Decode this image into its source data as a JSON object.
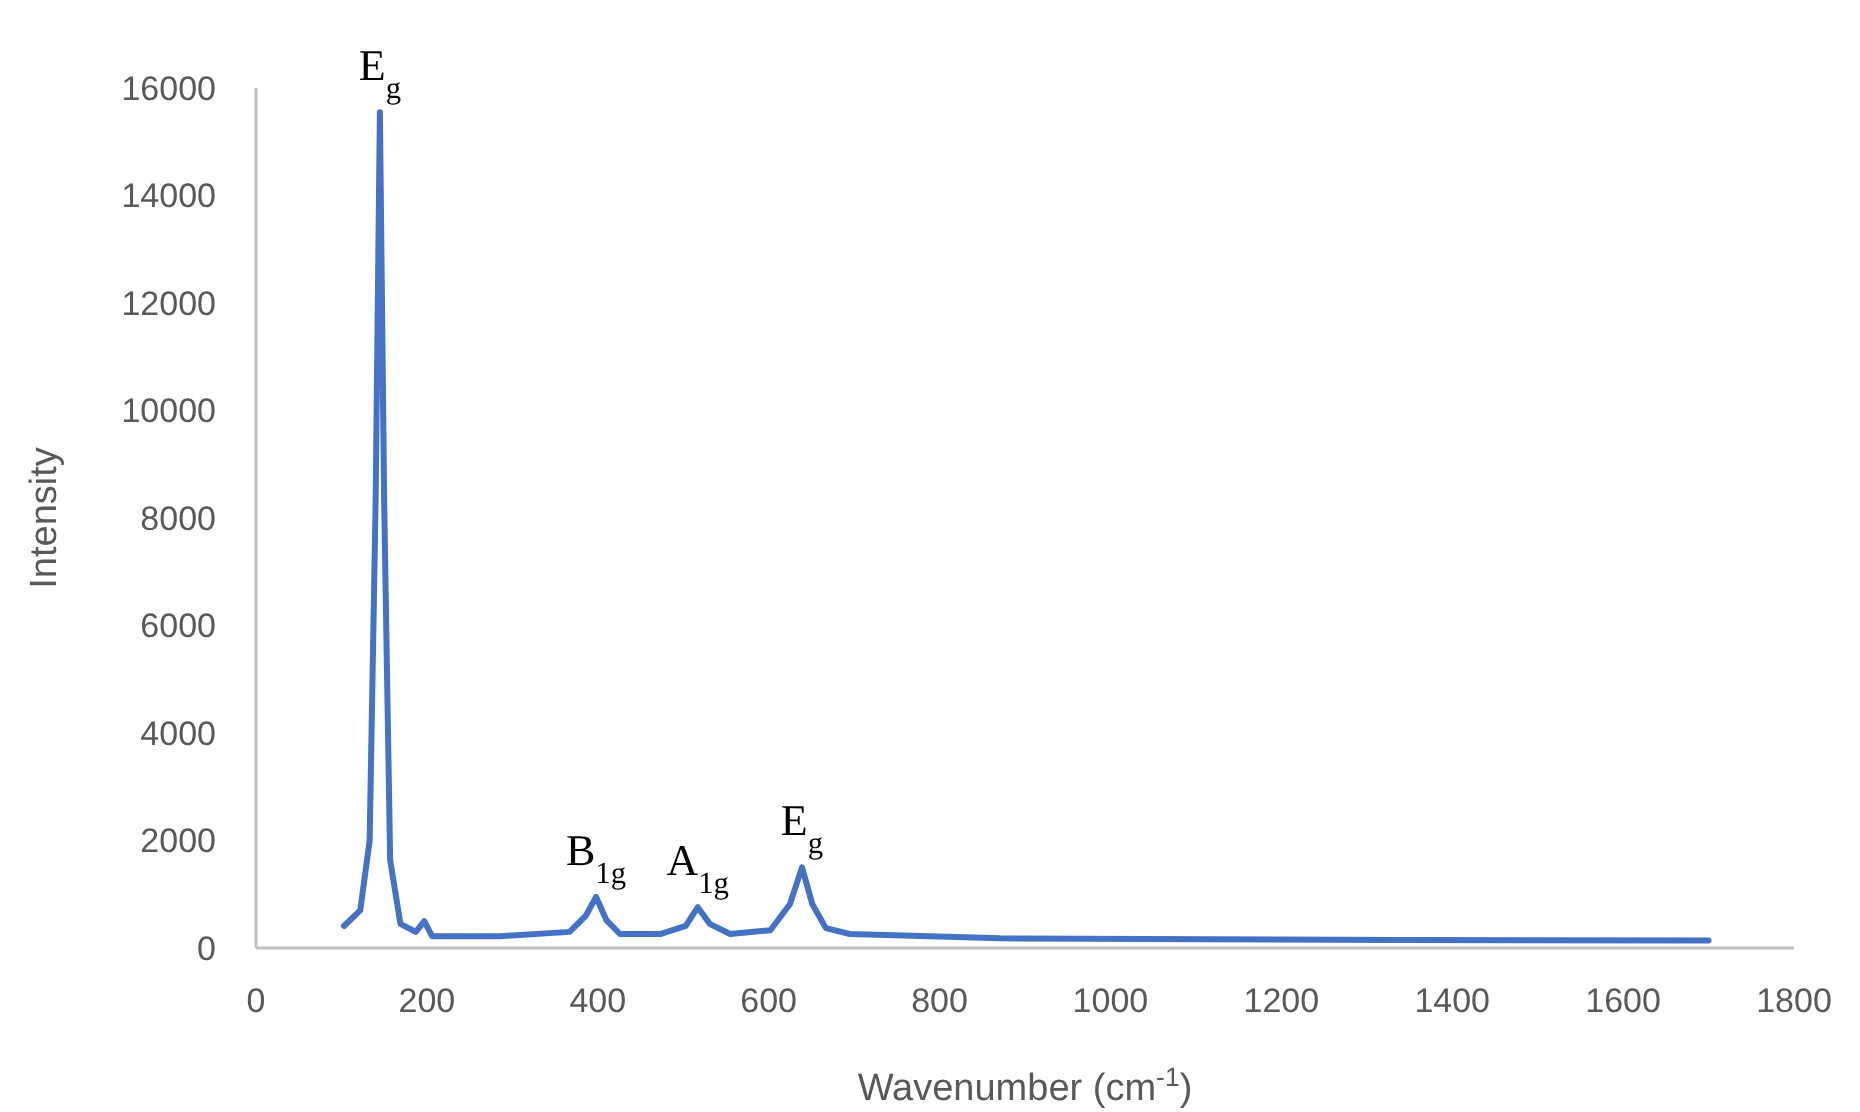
{
  "chart_data": {
    "type": "line",
    "xlabel": "Wavenumber (cm$^{-1}$)",
    "ylabel": "Intensity",
    "xlim": [
      0,
      1800
    ],
    "xticks": [
      0,
      200,
      400,
      600,
      800,
      1000,
      1200,
      1400,
      1600,
      1800
    ],
    "ylim": [
      0,
      16000
    ],
    "yticks": [
      0,
      2000,
      4000,
      6000,
      8000,
      10000,
      12000,
      14000,
      16000
    ],
    "grid": false,
    "marker": "none",
    "line_style": "solid",
    "series": [
      {
        "color": "#4472c4",
        "x": [
          103,
          122,
          133,
          140,
          145,
          150,
          157,
          169,
          187,
          197,
          206,
          286,
          367,
          386,
          398,
          410,
          426,
          473,
          503,
          517,
          531,
          555,
          602,
          625,
          639,
          651,
          667,
          695,
          871,
          1339,
          1700
        ],
        "values": [
          410,
          700,
          2000,
          8300,
          15550,
          8300,
          1640,
          450,
          300,
          500,
          220,
          220,
          300,
          600,
          950,
          520,
          260,
          260,
          410,
          760,
          450,
          260,
          330,
          820,
          1500,
          820,
          370,
          260,
          180,
          150,
          140
        ]
      }
    ],
    "annotations": [
      {
        "text": "E$_{g}$",
        "x": 145,
        "y": 15550
      },
      {
        "text": "B$_{1g}$",
        "x": 398,
        "y": 950
      },
      {
        "text": "A$_{1g}$",
        "x": 517,
        "y": 760
      },
      {
        "text": "E$_{g}$",
        "x": 639,
        "y": 1500
      }
    ]
  }
}
